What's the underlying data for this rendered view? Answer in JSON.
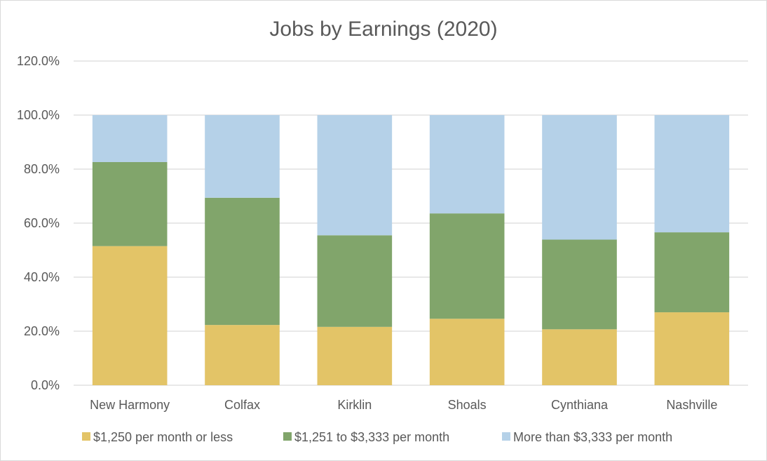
{
  "chart_data": {
    "type": "bar",
    "stacked": true,
    "title": "Jobs by Earnings (2020)",
    "xlabel": "",
    "ylabel": "",
    "ylim": [
      0,
      120
    ],
    "yticks": [
      0,
      20,
      40,
      60,
      80,
      100,
      120
    ],
    "ytick_labels": [
      "0.0%",
      "20.0%",
      "40.0%",
      "60.0%",
      "80.0%",
      "100.0%",
      "120.0%"
    ],
    "grid": true,
    "legend_position": "bottom",
    "categories": [
      "New Harmony",
      "Colfax",
      "Kirklin",
      "Shoals",
      "Cynthiana",
      "Nashville"
    ],
    "series": [
      {
        "name": "$1,250 per month or less",
        "color": "#e3c467",
        "values": [
          51.5,
          22.3,
          21.6,
          24.6,
          20.7,
          27.0
        ]
      },
      {
        "name": "$1,251 to $3,333 per month",
        "color": "#81a56b",
        "values": [
          31.1,
          47.1,
          33.9,
          39.0,
          33.2,
          29.6
        ]
      },
      {
        "name": "More than $3,333 per month",
        "color": "#b5d1e8",
        "values": [
          17.4,
          30.6,
          44.5,
          36.4,
          46.1,
          43.4
        ]
      }
    ]
  }
}
